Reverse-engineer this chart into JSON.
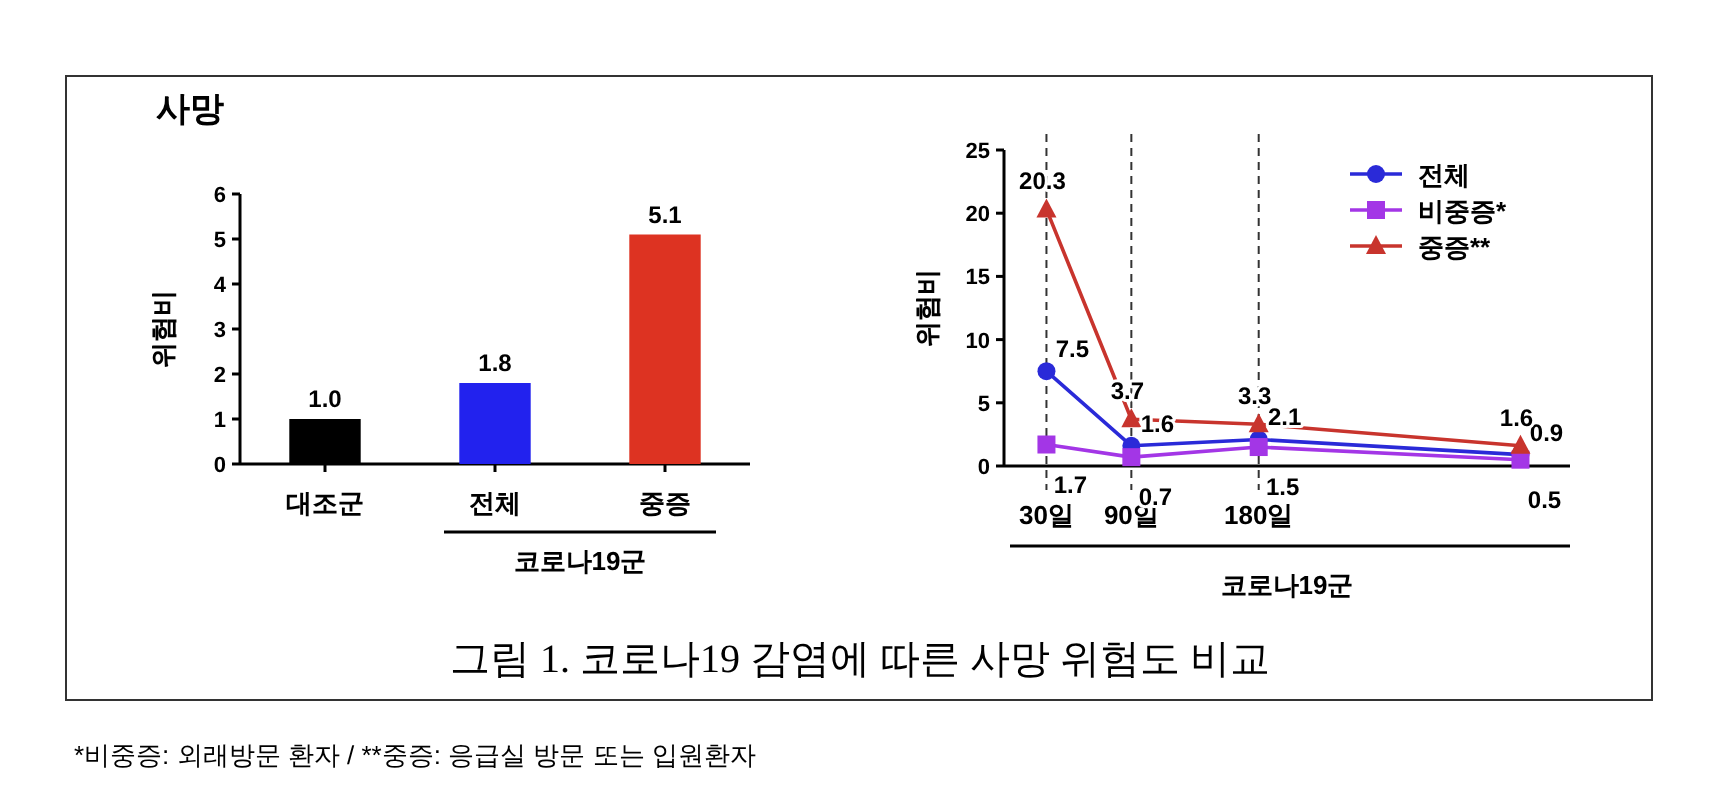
{
  "chart_data": [
    {
      "type": "bar",
      "title": "사망",
      "categories": [
        "대조군",
        "전체",
        "중증"
      ],
      "values": [
        1.0,
        1.8,
        5.1
      ],
      "colors": [
        "#000000",
        "#2222ee",
        "#dd3322"
      ],
      "value_labels": [
        "1.0",
        "1.8",
        "5.1"
      ],
      "ylabel": "위험비",
      "xlabel": "코로나19군",
      "ylim": [
        0,
        6
      ],
      "yticks": [
        0,
        1,
        2,
        3,
        4,
        5,
        6
      ],
      "annotations": [
        "그림 1. 코로나19 감염에 따른 사망 위험도 비교",
        "*비중증: 외래방문 환자 / **중증: 응급실 방문 또는 입원환자"
      ]
    },
    {
      "type": "line",
      "x": [
        30,
        90,
        180,
        365
      ],
      "xlim": [
        0,
        400
      ],
      "xticks": [
        {
          "value": 30,
          "label": "30일"
        },
        {
          "value": 90,
          "label": "90일"
        },
        {
          "value": 180,
          "label": "180일"
        }
      ],
      "ylim": [
        0,
        25
      ],
      "yticks": [
        0,
        5,
        10,
        15,
        20,
        25
      ],
      "ylabel": "위험비",
      "xlabel": "코로나19군",
      "legend": "top right",
      "data_labels": true,
      "ref_lines": [
        {
          "axis": "x",
          "value": 30,
          "line_style": "dashed"
        },
        {
          "axis": "x",
          "value": 90,
          "line_style": "dashed"
        },
        {
          "axis": "x",
          "value": 180,
          "line_style": "dashed"
        }
      ],
      "series": [
        {
          "name": "전체",
          "color": "#2a2ad8",
          "marker": "circle",
          "values": [
            7.5,
            1.6,
            2.1,
            0.9
          ]
        },
        {
          "name": "비중증*",
          "color": "#a336e6",
          "marker": "square",
          "values": [
            1.7,
            0.7,
            1.5,
            0.5
          ]
        },
        {
          "name": "중증**",
          "color": "#c8342d",
          "marker": "triangle",
          "values": [
            20.3,
            3.7,
            3.3,
            1.6
          ]
        }
      ]
    }
  ]
}
